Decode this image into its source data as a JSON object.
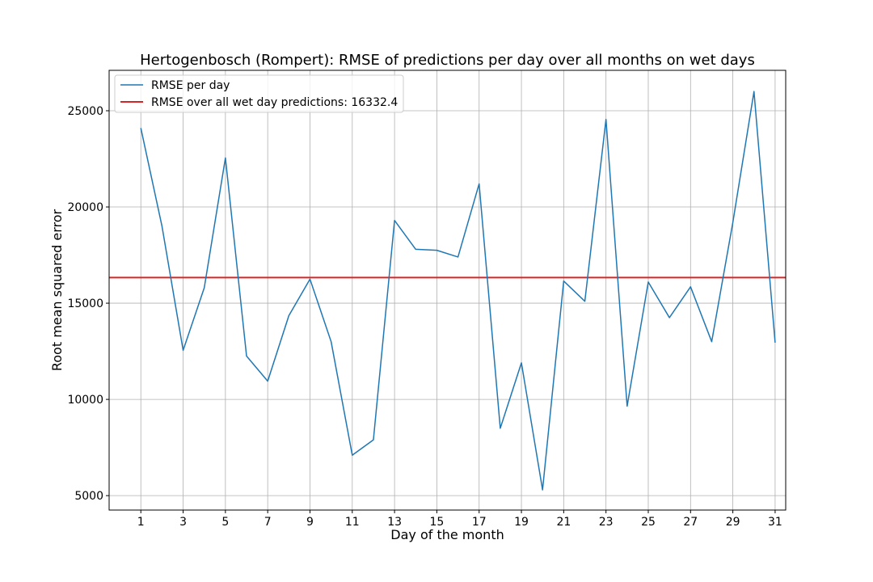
{
  "chart_data": {
    "type": "line",
    "title": "Hertogenbosch (Rompert): RMSE of predictions per day over all months on wet days",
    "xlabel": "Day of the month",
    "ylabel": "Root mean squared error",
    "xlim": [
      -0.5,
      31.5
    ],
    "ylim": [
      4250,
      27100
    ],
    "xticks": [
      1,
      3,
      5,
      7,
      9,
      11,
      13,
      15,
      17,
      19,
      21,
      23,
      25,
      27,
      29,
      31
    ],
    "yticks": [
      5000,
      10000,
      15000,
      20000,
      25000
    ],
    "grid": true,
    "legend_position": "top-left",
    "series": [
      {
        "name": "RMSE per day",
        "color": "#1f77b4",
        "x": [
          1,
          2,
          3,
          4,
          5,
          6,
          7,
          8,
          9,
          10,
          11,
          12,
          13,
          14,
          15,
          16,
          17,
          18,
          19,
          20,
          21,
          22,
          23,
          24,
          25,
          26,
          27,
          28,
          29,
          30,
          31
        ],
        "y": [
          24100,
          19000,
          12550,
          15800,
          22550,
          12250,
          10950,
          14350,
          16250,
          13000,
          7100,
          7900,
          19300,
          17800,
          17750,
          17400,
          21200,
          8500,
          11900,
          5300,
          16150,
          15100,
          24550,
          9650,
          16100,
          14250,
          15850,
          13000,
          19200,
          26000,
          12950
        ]
      }
    ],
    "reference_line": {
      "name": "RMSE over all wet day predictions: 16332.4",
      "value": 16332.4,
      "color": "#d62728"
    }
  }
}
